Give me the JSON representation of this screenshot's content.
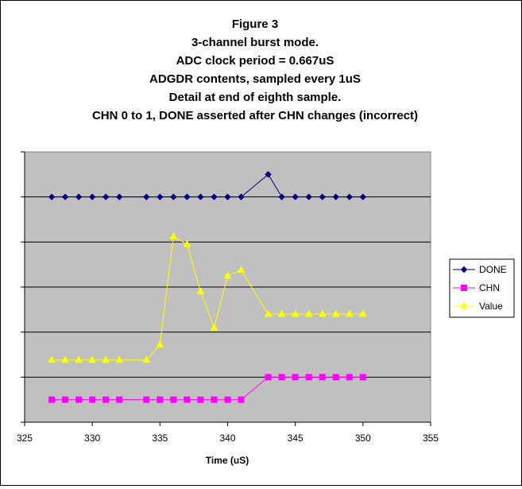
{
  "chart_data": {
    "type": "line",
    "title": [
      "Figure 3",
      "3-channel burst mode.",
      "ADC clock period = 0.667uS",
      "ADGDR contents, sampled every 1uS",
      "Detail at end of eighth sample.",
      "CHN 0 to 1, DONE asserted after CHN changes (incorrect)"
    ],
    "xlabel": "Time (uS)",
    "ylabel": "",
    "xlim": [
      325,
      355
    ],
    "ylim": [
      0,
      6
    ],
    "xticks": [
      325,
      330,
      335,
      340,
      345,
      350,
      355
    ],
    "y_gridlines": [
      1,
      2,
      3,
      4,
      5
    ],
    "y_tick_labels_shown": false,
    "grid": true,
    "legend_position": "right",
    "series": [
      {
        "name": "DONE",
        "color": "#000080",
        "marker": "diamond",
        "x": [
          327,
          328,
          329,
          330,
          331,
          332,
          334,
          335,
          336,
          337,
          338,
          339,
          340,
          341,
          343,
          344,
          345,
          346,
          347,
          348,
          349,
          350
        ],
        "y": [
          5,
          5,
          5,
          5,
          5,
          5,
          5,
          5,
          5,
          5,
          5,
          5,
          5,
          5,
          5.5,
          5,
          5,
          5,
          5,
          5,
          5,
          5
        ]
      },
      {
        "name": "CHN",
        "color": "#ff00ff",
        "marker": "square",
        "x": [
          327,
          328,
          329,
          330,
          331,
          332,
          334,
          335,
          336,
          337,
          338,
          339,
          340,
          341,
          343,
          344,
          345,
          346,
          347,
          348,
          349,
          350
        ],
        "y": [
          0.5,
          0.5,
          0.5,
          0.5,
          0.5,
          0.5,
          0.5,
          0.5,
          0.5,
          0.5,
          0.5,
          0.5,
          0.5,
          0.5,
          1,
          1,
          1,
          1,
          1,
          1,
          1,
          1
        ]
      },
      {
        "name": "Value",
        "color": "#ffff00",
        "marker": "triangle",
        "x": [
          327,
          328,
          329,
          330,
          331,
          332,
          334,
          335,
          336,
          337,
          338,
          339,
          340,
          341,
          343,
          344,
          345,
          346,
          347,
          348,
          349,
          350
        ],
        "y": [
          1.38,
          1.38,
          1.38,
          1.38,
          1.38,
          1.38,
          1.38,
          1.72,
          4.12,
          3.95,
          2.9,
          2.1,
          3.25,
          3.38,
          2.4,
          2.4,
          2.4,
          2.4,
          2.4,
          2.4,
          2.4,
          2.4
        ]
      }
    ]
  }
}
